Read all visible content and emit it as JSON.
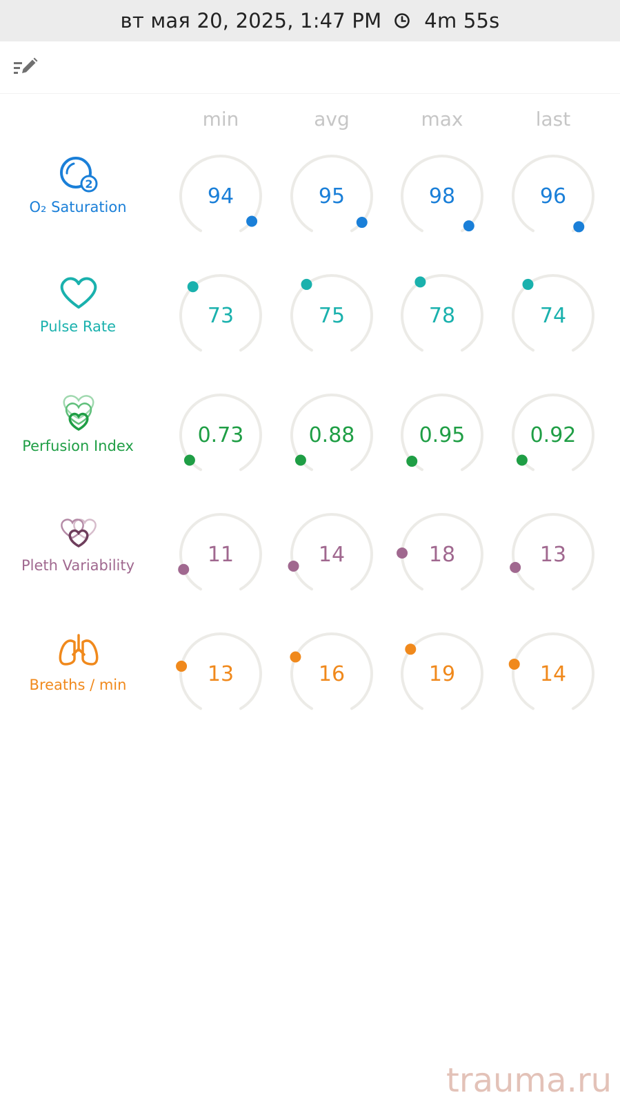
{
  "status_bar": {
    "datetime": "вт мая 20, 2025, 1:47 PM",
    "duration": "4m 55s",
    "icon": "clock-icon"
  },
  "toolbar": {
    "edit_icon": "edit-list-icon"
  },
  "columns": [
    "min",
    "avg",
    "max",
    "last"
  ],
  "colors": {
    "track": "#ecebe7",
    "spo2": "#1a7fd8",
    "pulse": "#1ab1ad",
    "perfusion": "#1f9e45",
    "pleth": "#a0688f",
    "breaths": "#f0891c",
    "header": "#c6c6c6"
  },
  "metrics": [
    {
      "id": "spo2",
      "label": "O₂ Saturation",
      "icon": "o2-saturation-icon",
      "values": [
        "94",
        "95",
        "98",
        "96"
      ],
      "dot_angles": [
        129,
        131,
        138,
        140
      ]
    },
    {
      "id": "pulse",
      "label": "Pulse Rate",
      "icon": "heart-icon",
      "values": [
        "73",
        "75",
        "78",
        "74"
      ],
      "dot_angles": [
        -44,
        -39,
        -33,
        -39
      ]
    },
    {
      "id": "perfusion",
      "label": "Perfusion Index",
      "icon": "perfusion-hearts-icon",
      "values": [
        "0.73",
        "0.88",
        "0.95",
        "0.92"
      ],
      "dot_angles": [
        -129,
        -129,
        -131,
        -129
      ]
    },
    {
      "id": "pleth",
      "label": "Pleth Variability",
      "icon": "pleth-hearts-icon",
      "values": [
        "11",
        "14",
        "18",
        "13"
      ],
      "dot_angles": [
        -112,
        -107,
        -88,
        -109
      ]
    },
    {
      "id": "breaths",
      "label": "Breaths / min",
      "icon": "lungs-icon",
      "values": [
        "13",
        "16",
        "19",
        "14"
      ],
      "dot_angles": [
        -79,
        -65,
        -52,
        -76
      ]
    }
  ],
  "watermark": "trauma.ru"
}
